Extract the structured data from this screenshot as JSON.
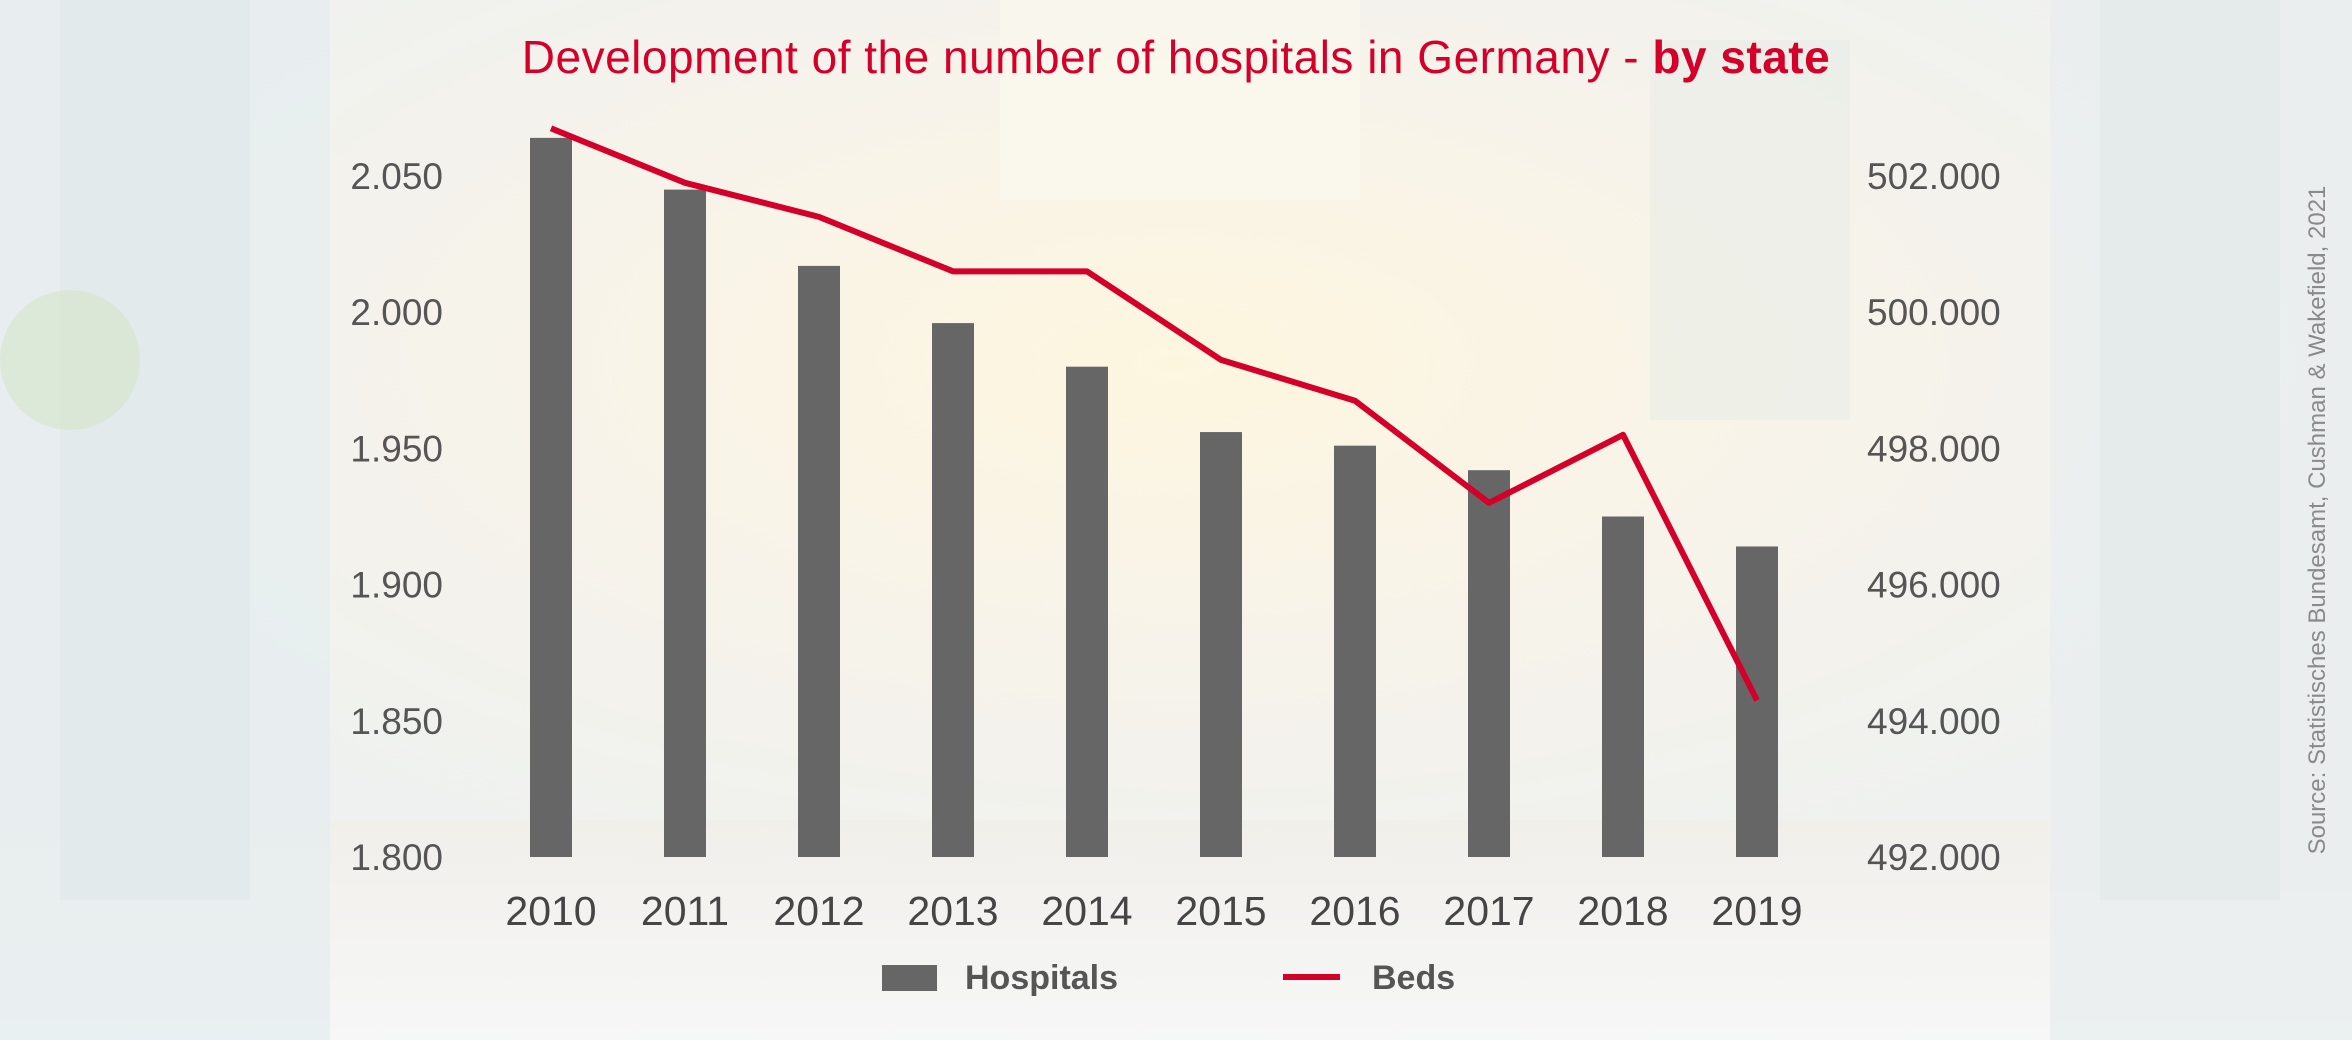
{
  "colors": {
    "accent": "#d4002a",
    "bar": "#666666",
    "line": "#d4002a",
    "axis_text": "#555555"
  },
  "chart_data": {
    "type": "bar",
    "title": "Development of the number of hospitals in Germany - ",
    "title_bold": "by state",
    "categories": [
      "2010",
      "2011",
      "2012",
      "2013",
      "2014",
      "2015",
      "2016",
      "2017",
      "2018",
      "2019"
    ],
    "series": [
      {
        "name": "Hospitals",
        "type": "bar",
        "axis": "left",
        "values": [
          2064,
          2045,
          2017,
          1996,
          1980,
          1956,
          1951,
          1942,
          1925,
          1914
        ]
      },
      {
        "name": "Beds",
        "type": "line",
        "axis": "right",
        "values": [
          502700,
          501900,
          501400,
          500600,
          500600,
          499300,
          498700,
          497200,
          498200,
          494300
        ]
      }
    ],
    "y_left": {
      "min": 1800,
      "max": 2060,
      "ticks": [
        "1.800",
        "1.850",
        "1.900",
        "1.950",
        "2.000",
        "2.050"
      ],
      "tick_values": [
        1800,
        1850,
        1900,
        1950,
        2000,
        2050
      ]
    },
    "y_right": {
      "min": 492000,
      "max": 503200,
      "ticks": [
        "492.000",
        "494.000",
        "496.000",
        "498.000",
        "500.000",
        "502.000"
      ],
      "tick_values": [
        492000,
        494000,
        496000,
        498000,
        500000,
        502000
      ]
    },
    "legend": [
      "Hospitals",
      "Beds"
    ],
    "legend_position": "bottom-center",
    "grid": false,
    "source": "Source: Statistisches Bundesamt, Cushman & Wakefield, 2021"
  }
}
